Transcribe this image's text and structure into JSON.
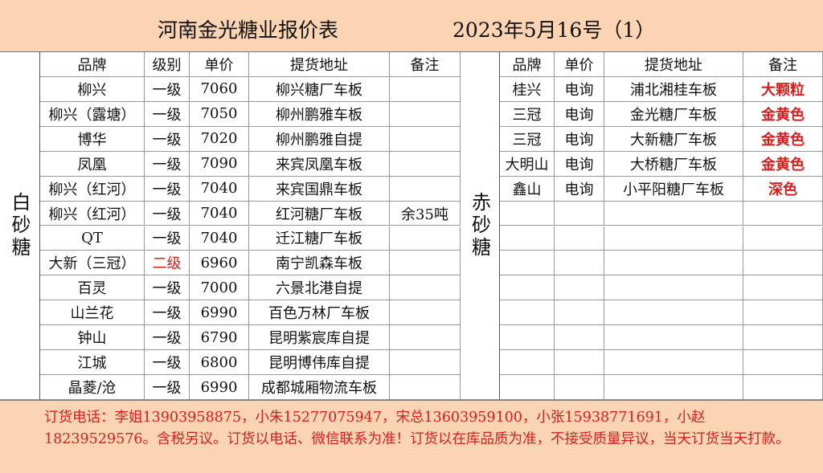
{
  "header": {
    "title": "河南金光糖业报价表",
    "date": "2023年5月16号（1）"
  },
  "white_sugar": {
    "label": "白砂糖",
    "columns": [
      "品牌",
      "级别",
      "单价",
      "提货地址",
      "备注"
    ],
    "rows": [
      [
        "柳兴",
        "一级",
        7060,
        "柳兴糖厂车板",
        ""
      ],
      [
        "柳兴（露塘）",
        "一级",
        7050,
        "柳州鹏雅车板",
        ""
      ],
      [
        "博华",
        "一级",
        7020,
        "柳州鹏雅自提",
        ""
      ],
      [
        "凤凰",
        "一级",
        7090,
        "来宾凤凰车板",
        ""
      ],
      [
        "柳兴（红河）",
        "一级",
        7040,
        "来宾国鼎车板",
        ""
      ],
      [
        "柳兴（红河）",
        "一级",
        7040,
        "红河糖厂车板",
        "余35吨"
      ],
      [
        "QT",
        "一级",
        7040,
        "迁江糖厂车板",
        ""
      ],
      [
        "大新（三冠）",
        "二级",
        6960,
        "南宁凯森车板",
        ""
      ],
      [
        "百灵",
        "一级",
        7000,
        "六景北港自提",
        ""
      ],
      [
        "山兰花",
        "一级",
        6990,
        "百色万林厂车板",
        ""
      ],
      [
        "钟山",
        "一级",
        6790,
        "昆明紫宸库自提",
        ""
      ],
      [
        "江城",
        "一级",
        6800,
        "昆明博伟库自提",
        ""
      ],
      [
        "晶菱/沧",
        "一级",
        6990,
        "成都城厢物流车板",
        ""
      ]
    ]
  },
  "brown_sugar": {
    "label": "赤砂糖",
    "columns": [
      "品牌",
      "单价",
      "提货地址",
      "备注"
    ],
    "rows": [
      [
        "桂兴",
        "电询",
        "浦北湘桂车板",
        "大颗粒"
      ],
      [
        "三冠",
        "电询",
        "金光糖厂车板",
        "金黄色"
      ],
      [
        "三冠",
        "电询",
        "大新糖厂车板",
        "金黄色"
      ],
      [
        "大明山",
        "电询",
        "大桥糖厂车板",
        "金黄色"
      ],
      [
        "鑫山",
        "电询",
        "小平阳糖厂车板",
        "深色"
      ]
    ]
  },
  "footer": {
    "text": "订货电话：李姐13903958875，小朱15277075947，宋总13603959100，小张15938771691，小赵18239529576。含税另议。订货以电话、微信联系为准！订货以在库品质为准，不接受质量异议，当天订货当天打款。"
  }
}
